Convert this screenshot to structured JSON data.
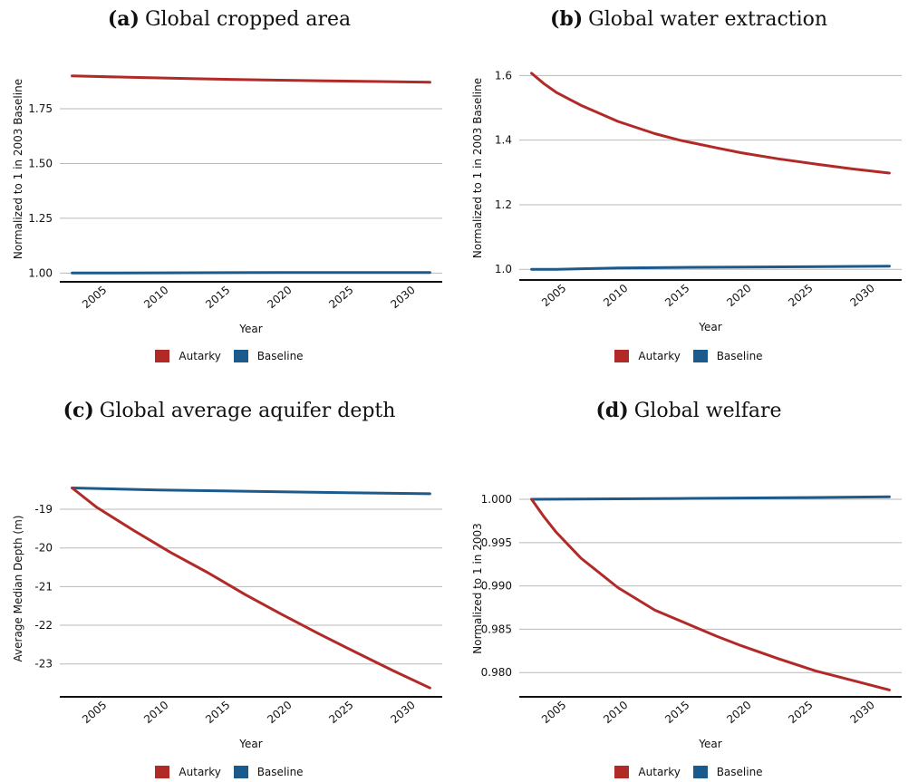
{
  "colors": {
    "autarky": "#b22a28",
    "baseline": "#1c5a8c",
    "grid": "#b9b9b9",
    "axis": "#111111"
  },
  "chart_data": [
    {
      "id": "a",
      "type": "line",
      "panel_label": "(a)",
      "title": "Global cropped area",
      "xlabel": "Year",
      "ylabel": "Normalized to 1 in 2003 Baseline",
      "xlim": [
        2002,
        2033
      ],
      "ylim": [
        0.96,
        1.99
      ],
      "xticks": [
        2005,
        2010,
        2015,
        2020,
        2025,
        2030
      ],
      "xtick_labels": [
        "2005",
        "2010",
        "2015",
        "2020",
        "2025",
        "2030"
      ],
      "yticks": [
        1.0,
        1.25,
        1.5,
        1.75
      ],
      "ytick_labels": [
        "1.00",
        "1.25",
        "1.50",
        "1.75"
      ],
      "grid": true,
      "legend": "bottom-center",
      "series": [
        {
          "name": "Autarky",
          "color_key": "autarky",
          "x": [
            2003,
            2008,
            2013,
            2018,
            2023,
            2028,
            2032
          ],
          "y": [
            1.9,
            1.893,
            1.887,
            1.882,
            1.878,
            1.874,
            1.871
          ]
        },
        {
          "name": "Baseline",
          "color_key": "baseline",
          "x": [
            2003,
            2010,
            2020,
            2032
          ],
          "y": [
            1.0,
            1.001,
            1.002,
            1.002
          ]
        }
      ]
    },
    {
      "id": "b",
      "type": "line",
      "panel_label": "(b)",
      "title": "Global water extraction",
      "xlabel": "Year",
      "ylabel": "Normalized to 1 in 2003 Baseline",
      "xlim": [
        2002,
        2033
      ],
      "ylim": [
        0.967,
        1.66
      ],
      "xticks": [
        2005,
        2010,
        2015,
        2020,
        2025,
        2030
      ],
      "xtick_labels": [
        "2005",
        "2010",
        "2015",
        "2020",
        "2025",
        "2030"
      ],
      "yticks": [
        1.0,
        1.2,
        1.4,
        1.6
      ],
      "ytick_labels": [
        "1.0",
        "1.2",
        "1.4",
        "1.6"
      ],
      "grid": true,
      "legend": "bottom-center",
      "series": [
        {
          "name": "Autarky",
          "color_key": "autarky",
          "x": [
            2003,
            2004,
            2005,
            2007,
            2010,
            2013,
            2015,
            2018,
            2020,
            2023,
            2026,
            2029,
            2032
          ],
          "y": [
            1.607,
            1.575,
            1.548,
            1.508,
            1.458,
            1.42,
            1.4,
            1.376,
            1.361,
            1.342,
            1.326,
            1.311,
            1.298
          ]
        },
        {
          "name": "Baseline",
          "color_key": "baseline",
          "x": [
            2003,
            2005,
            2010,
            2015,
            2020,
            2025,
            2032
          ],
          "y": [
            1.0,
            1.0,
            1.004,
            1.006,
            1.007,
            1.008,
            1.01
          ]
        }
      ]
    },
    {
      "id": "c",
      "type": "line",
      "panel_label": "(c)",
      "title": "Global average aquifer depth",
      "xlabel": "Year",
      "ylabel": "Average Median Depth (m)",
      "xlim": [
        2002,
        2033
      ],
      "ylim": [
        -23.85,
        -18.25
      ],
      "xticks": [
        2005,
        2010,
        2015,
        2020,
        2025,
        2030
      ],
      "xtick_labels": [
        "2005",
        "2010",
        "2015",
        "2020",
        "2025",
        "2030"
      ],
      "yticks": [
        -19,
        -20,
        -21,
        -22,
        -23
      ],
      "ytick_labels": [
        "-19",
        "-20",
        "-21",
        "-22",
        "-23"
      ],
      "grid": true,
      "legend": "bottom-center",
      "series": [
        {
          "name": "Autarky",
          "color_key": "autarky",
          "x": [
            2003,
            2005,
            2008,
            2011,
            2014,
            2017,
            2020,
            2023,
            2026,
            2029,
            2032
          ],
          "y": [
            -18.45,
            -18.95,
            -19.55,
            -20.12,
            -20.64,
            -21.2,
            -21.72,
            -22.22,
            -22.7,
            -23.17,
            -23.62
          ]
        },
        {
          "name": "Baseline",
          "color_key": "baseline",
          "x": [
            2003,
            2010,
            2020,
            2032
          ],
          "y": [
            -18.45,
            -18.5,
            -18.55,
            -18.6
          ]
        }
      ]
    },
    {
      "id": "d",
      "type": "line",
      "panel_label": "(d)",
      "title": "Global welfare",
      "xlabel": "Year",
      "ylabel": "Normalized to 1 in 2003",
      "xlim": [
        2002,
        2033
      ],
      "ylim": [
        0.9772,
        1.0022
      ],
      "xticks": [
        2005,
        2010,
        2015,
        2020,
        2025,
        2030
      ],
      "xtick_labels": [
        "2005",
        "2010",
        "2015",
        "2020",
        "2025",
        "2030"
      ],
      "yticks": [
        1.0,
        0.995,
        0.99,
        0.985,
        0.98
      ],
      "ytick_labels": [
        "1.000",
        "0.995",
        "0.990",
        "0.985",
        "0.980"
      ],
      "grid": true,
      "legend": "bottom-center",
      "series": [
        {
          "name": "Autarky",
          "color_key": "autarky",
          "x": [
            2003,
            2004,
            2005,
            2007,
            2010,
            2013,
            2015,
            2018,
            2020,
            2023,
            2026,
            2029,
            2032
          ],
          "y": [
            1.0,
            0.998,
            0.9962,
            0.9932,
            0.9898,
            0.9872,
            0.986,
            0.9842,
            0.9831,
            0.9816,
            0.9802,
            0.9791,
            0.978
          ]
        },
        {
          "name": "Baseline",
          "color_key": "baseline",
          "x": [
            2003,
            2015,
            2025,
            2032
          ],
          "y": [
            1.0,
            1.0001,
            1.0002,
            1.0003
          ]
        }
      ]
    }
  ]
}
